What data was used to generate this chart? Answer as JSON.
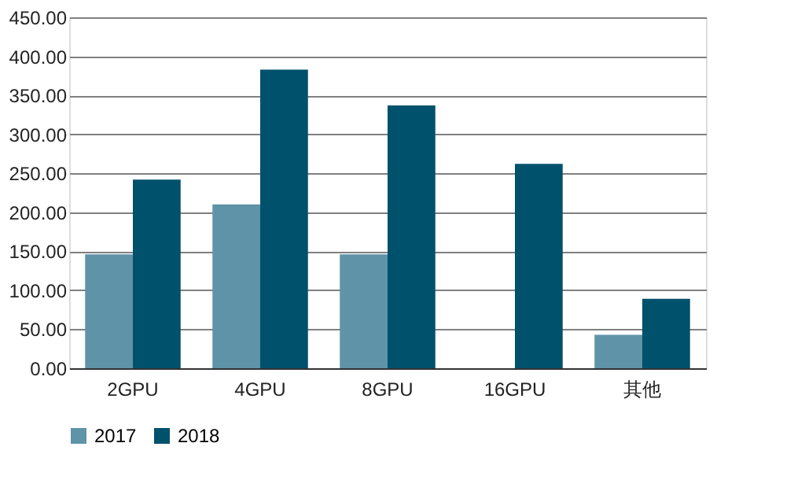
{
  "chart_data": {
    "type": "bar",
    "categories": [
      "2GPU",
      "4GPU",
      "8GPU",
      "16GPU",
      "其他"
    ],
    "series": [
      {
        "name": "2017",
        "color": "#5f93a8",
        "values": [
          146,
          210,
          146,
          null,
          43
        ]
      },
      {
        "name": "2018",
        "color": "#00516c",
        "values": [
          242,
          383,
          337,
          262,
          89
        ]
      }
    ],
    "ylim": [
      0,
      450
    ],
    "yticks": [
      {
        "value": 0,
        "label": "0.00"
      },
      {
        "value": 50,
        "label": "50.00"
      },
      {
        "value": 100,
        "label": "100.00"
      },
      {
        "value": 150,
        "label": "150.00"
      },
      {
        "value": 200,
        "label": "200.00"
      },
      {
        "value": 250,
        "label": "250.00"
      },
      {
        "value": 300,
        "label": "300.00"
      },
      {
        "value": 350,
        "label": "350.00"
      },
      {
        "value": 400,
        "label": "400.00"
      },
      {
        "value": 450,
        "label": "450.00"
      }
    ],
    "grid": "y",
    "legend": "bottom"
  }
}
